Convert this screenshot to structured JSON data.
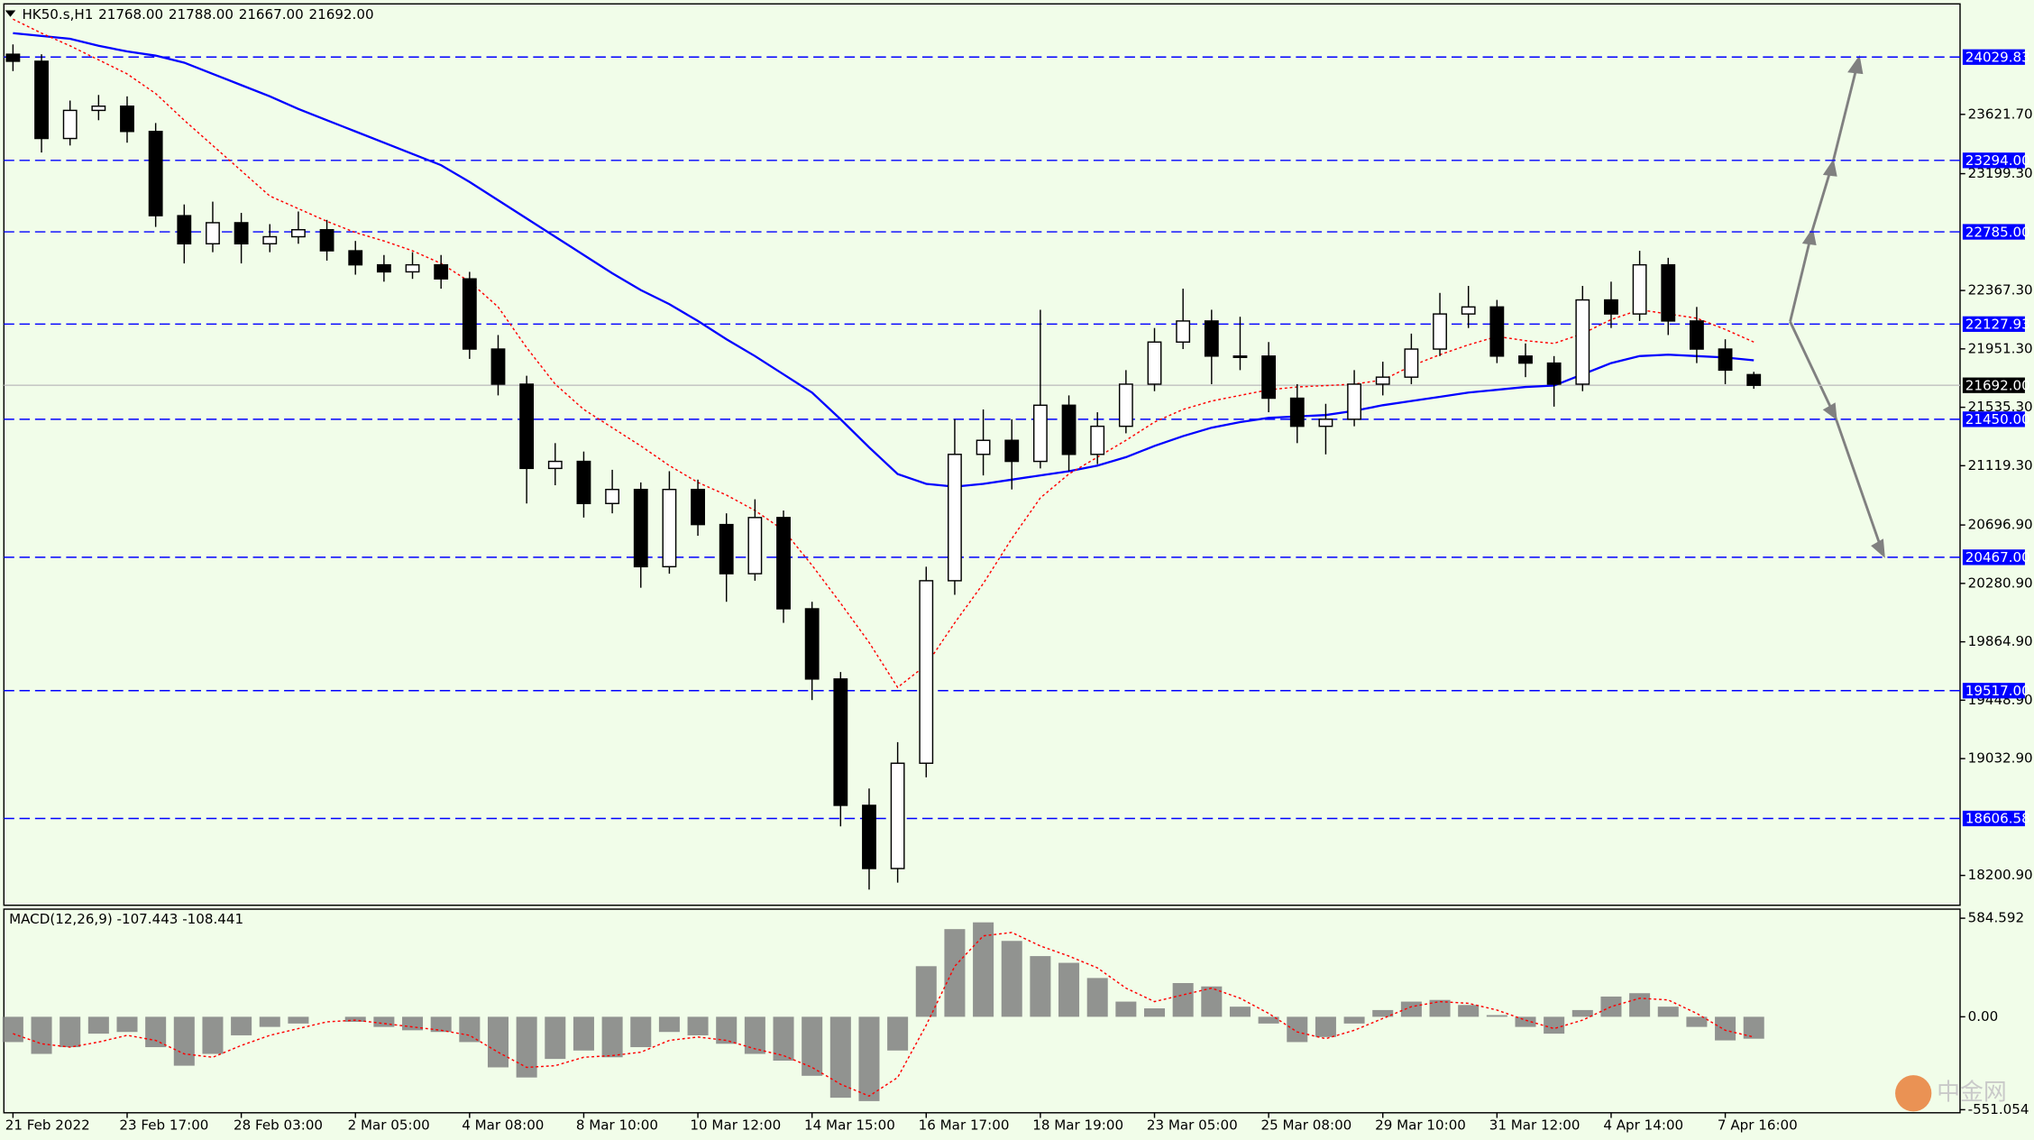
{
  "chart_data": [
    {
      "type": "candlestick",
      "title": "HK50.s,H1",
      "header_values": [
        "21768.00",
        "21788.00",
        "21667.00",
        "21692.00"
      ],
      "categories": [
        "21 Feb 2022",
        null,
        null,
        null,
        "23 Feb 17:00",
        null,
        null,
        null,
        "28 Feb 03:00",
        null,
        null,
        null,
        "2 Mar 05:00",
        null,
        null,
        null,
        "4 Mar 08:00",
        null,
        null,
        null,
        "8 Mar 10:00",
        null,
        null,
        null,
        "10 Mar 12:00",
        null,
        null,
        null,
        "14 Mar 15:00",
        null,
        null,
        null,
        "16 Mar 17:00",
        null,
        null,
        null,
        "18 Mar 19:00",
        null,
        null,
        null,
        "23 Mar 05:00",
        null,
        null,
        null,
        "25 Mar 08:00",
        null,
        null,
        null,
        "29 Mar 10:00",
        null,
        null,
        null,
        "31 Mar 12:00",
        null,
        null,
        null,
        "4 Apr 14:00",
        null,
        null,
        null,
        "7 Apr 16:00",
        null
      ],
      "open": [
        24050,
        24000,
        23450,
        23650,
        23680,
        23500,
        22900,
        22700,
        22850,
        22700,
        22750,
        22800,
        22650,
        22550,
        22500,
        22550,
        22450,
        21950,
        21700,
        21100,
        21150,
        20850,
        20950,
        20400,
        20950,
        20700,
        20350,
        20750,
        20100,
        19600,
        18700,
        18250,
        19000,
        20300,
        21200,
        21300,
        21150,
        21550,
        21200,
        21400,
        21700,
        22000,
        22150,
        21900,
        21900,
        21600,
        21400,
        21450,
        21700,
        21750,
        21950,
        22200,
        22250,
        21900,
        21850,
        21700,
        22300,
        22200,
        22550,
        22150,
        21950,
        21768
      ],
      "high": [
        24120,
        24050,
        23720,
        23760,
        23750,
        23560,
        22980,
        23000,
        22920,
        22840,
        22930,
        22870,
        22720,
        22620,
        22640,
        22620,
        22500,
        22050,
        21760,
        21280,
        21220,
        21090,
        21000,
        21080,
        21020,
        20780,
        20880,
        20800,
        20150,
        19650,
        18820,
        19150,
        20400,
        21450,
        21520,
        21450,
        22230,
        21620,
        21500,
        21800,
        22100,
        22380,
        22230,
        22180,
        22000,
        21700,
        21560,
        21800,
        21860,
        22060,
        22350,
        22400,
        22300,
        21990,
        21900,
        22400,
        22430,
        22650,
        22600,
        22250,
        22020,
        21788
      ],
      "low": [
        23930,
        23350,
        23400,
        23580,
        23420,
        22820,
        22560,
        22640,
        22560,
        22640,
        22700,
        22580,
        22480,
        22430,
        22450,
        22380,
        21880,
        21620,
        20850,
        20980,
        20750,
        20780,
        20250,
        20350,
        20620,
        20150,
        20300,
        20000,
        19450,
        18550,
        18100,
        18150,
        18900,
        20200,
        21050,
        20950,
        21100,
        21080,
        21130,
        21350,
        21650,
        21950,
        21700,
        21800,
        21500,
        21280,
        21200,
        21400,
        21620,
        21700,
        21900,
        22100,
        21850,
        21750,
        21540,
        21650,
        22100,
        22150,
        22050,
        21850,
        21700,
        21667
      ],
      "close": [
        24000,
        23450,
        23650,
        23680,
        23500,
        22900,
        22700,
        22850,
        22700,
        22750,
        22800,
        22650,
        22550,
        22500,
        22550,
        22450,
        21950,
        21700,
        21100,
        21150,
        20850,
        20950,
        20400,
        20950,
        20700,
        20350,
        20750,
        20100,
        19600,
        18700,
        18250,
        19000,
        20300,
        21200,
        21300,
        21150,
        21550,
        21200,
        21400,
        21700,
        22000,
        22150,
        21900,
        21900,
        21600,
        21400,
        21450,
        21700,
        21750,
        21950,
        22200,
        22250,
        21900,
        21850,
        21700,
        22300,
        22200,
        22550,
        22150,
        21950,
        21800,
        21692
      ],
      "overlays": [
        {
          "color": "#0000ff",
          "values": [
            24200,
            24180,
            24160,
            24110,
            24070,
            24040,
            23990,
            23910,
            23830,
            23750,
            23660,
            23580,
            23500,
            23420,
            23340,
            23260,
            23140,
            23010,
            22880,
            22750,
            22620,
            22490,
            22370,
            22270,
            22150,
            22020,
            21900,
            21770,
            21640,
            21450,
            21250,
            21060,
            20990,
            20970,
            20990,
            21020,
            21050,
            21080,
            21120,
            21180,
            21260,
            21330,
            21390,
            21430,
            21460,
            21470,
            21480,
            21510,
            21550,
            21580,
            21610,
            21640,
            21660,
            21680,
            21690,
            21770,
            21850,
            21900,
            21910,
            21900,
            21890,
            21870
          ]
        },
        {
          "color": "#ff0000",
          "dotted": true,
          "values": [
            24300,
            24200,
            24110,
            24010,
            23910,
            23770,
            23580,
            23400,
            23220,
            23040,
            22950,
            22860,
            22780,
            22720,
            22650,
            22560,
            22430,
            22250,
            21960,
            21700,
            21520,
            21390,
            21260,
            21120,
            21000,
            20910,
            20800,
            20660,
            20410,
            20140,
            19860,
            19540,
            19700,
            20000,
            20280,
            20600,
            20890,
            21060,
            21180,
            21300,
            21430,
            21520,
            21580,
            21620,
            21660,
            21680,
            21690,
            21700,
            21730,
            21830,
            21910,
            21980,
            22040,
            22010,
            21990,
            22060,
            22160,
            22230,
            22200,
            22170,
            22090,
            22000
          ]
        }
      ],
      "ylim": [
        17988.4,
        24408.6
      ],
      "yticks": [
        {
          "value": 23621.7,
          "label": "23621.70"
        },
        {
          "value": 23199.3,
          "label": "23199.30"
        },
        {
          "value": 22367.3,
          "label": "22367.30"
        },
        {
          "value": 21951.3,
          "label": "21951.30"
        },
        {
          "value": 21535.3,
          "label": "21535.30"
        },
        {
          "value": 21119.3,
          "label": "21119.30"
        },
        {
          "value": 20696.9,
          "label": "20696.90"
        },
        {
          "value": 20280.9,
          "label": "20280.90"
        },
        {
          "value": 19864.9,
          "label": "19864.90"
        },
        {
          "value": 19448.9,
          "label": "19448.90"
        },
        {
          "value": 19032.9,
          "label": "19032.90"
        },
        {
          "value": 18200.9,
          "label": "18200.90"
        }
      ],
      "levels": [
        24029.83,
        {
          "value": 23294,
          "label": "23294.00"
        },
        {
          "value": 22785,
          "label": "22785.00"
        },
        22127.93,
        {
          "value": 21450,
          "label": "21450.00"
        },
        {
          "value": 20467,
          "label": "20467.00"
        },
        {
          "value": 19517,
          "label": "19517.00"
        },
        18606.58
      ],
      "level_color": "#0000ff",
      "current": {
        "value": 21692,
        "label": "21692.00"
      }
    },
    {
      "type": "macd",
      "title": "MACD(12,26,9) -107.443 -108.441",
      "color": "#808080",
      "values": [
        -150,
        -220,
        -180,
        -100,
        -90,
        -180,
        -290,
        -220,
        -110,
        -60,
        -40,
        0,
        -30,
        -60,
        -80,
        -90,
        -150,
        -300,
        -360,
        -250,
        -200,
        -240,
        -180,
        -90,
        -110,
        -160,
        -220,
        -260,
        -350,
        -480,
        -500,
        -200,
        300,
        520,
        560,
        450,
        360,
        320,
        230,
        90,
        50,
        200,
        180,
        60,
        -40,
        -150,
        -120,
        -40,
        40,
        90,
        100,
        70,
        10,
        -60,
        -100,
        40,
        120,
        140,
        60,
        -60,
        -140,
        -130
      ],
      "signal": {
        "color": "#ff0000",
        "values": [
          -100,
          -160,
          -180,
          -150,
          -110,
          -140,
          -220,
          -240,
          -170,
          -110,
          -70,
          -30,
          -20,
          -40,
          -60,
          -80,
          -110,
          -210,
          -300,
          -290,
          -240,
          -230,
          -210,
          -140,
          -120,
          -140,
          -190,
          -230,
          -300,
          -400,
          -470,
          -360,
          -50,
          300,
          480,
          500,
          420,
          360,
          290,
          170,
          90,
          130,
          170,
          110,
          20,
          -90,
          -130,
          -80,
          -10,
          60,
          90,
          80,
          40,
          -20,
          -70,
          -20,
          60,
          110,
          100,
          20,
          -80,
          -120
        ]
      },
      "ylim": [
        -569.2,
        638.4
      ],
      "yticks": [
        584.592,
        {
          "value": 0,
          "label": "0.00"
        },
        -551.054
      ]
    }
  ],
  "watermark": "中金网"
}
